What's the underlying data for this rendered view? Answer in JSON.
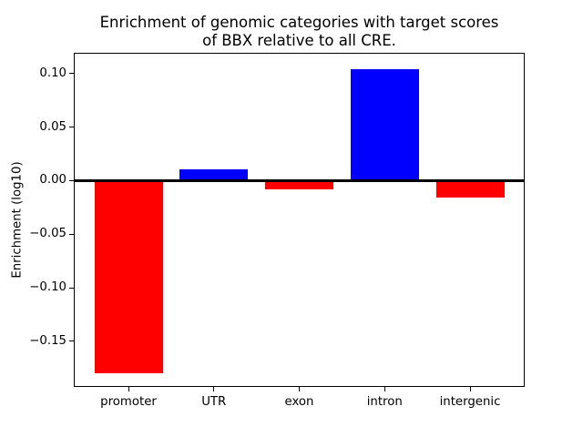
{
  "chart_data": {
    "type": "bar",
    "title": "Enrichment of genomic categories with target scores\nof BBX relative to all CRE.",
    "xlabel": "",
    "ylabel": "Enrichment (log10)",
    "categories": [
      "promoter",
      "UTR",
      "exon",
      "intron",
      "intergenic"
    ],
    "values": [
      -0.18,
      0.011,
      -0.008,
      0.104,
      -0.016
    ],
    "bar_colors": [
      "#ff0000",
      "#0000ff",
      "#ff0000",
      "#0000ff",
      "#ff0000"
    ],
    "color_rule": {
      "positive": "#0000ff",
      "negative": "#ff0000"
    },
    "yticks": [
      0.1,
      0.05,
      0.0,
      -0.05,
      -0.1,
      -0.15
    ],
    "ytick_labels": [
      "0.10",
      "0.05",
      "0.00",
      "−0.05",
      "−0.10",
      "−0.15"
    ],
    "ylim": [
      -0.1927,
      0.1195
    ],
    "xlim": [
      -0.64,
      4.64
    ],
    "bar_width": 0.8,
    "zero_line": true,
    "grid": false,
    "legend": null,
    "background_color": "#ffffff",
    "axis_color": "#000000"
  }
}
